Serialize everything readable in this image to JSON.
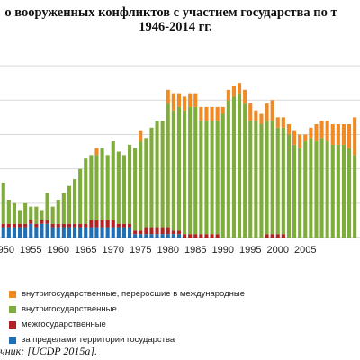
{
  "title_line1": "о вооруженных конфликтов с участием государства по т",
  "title_line2": "1946-2014 гг.",
  "source": "чник: [UCDP 2015a].",
  "colors": {
    "extra": "#1f6fb8",
    "inter": "#b22222",
    "intra": "#7fad3b",
    "intl": "#f08a24"
  },
  "chart_data": {
    "type": "bar",
    "stacked": true,
    "title": "о вооруженных конфликтов с участием государства по т 1946-2014 гг.",
    "x_tick_labels": [
      "1950",
      "1955",
      "1960",
      "1965",
      "1970",
      "1975",
      "1980",
      "1985",
      "1990",
      "1995",
      "2000",
      "2005"
    ],
    "ylim": [
      0,
      55
    ],
    "grid": "horizontal",
    "legend_position": "bottom",
    "categories": [
      1946,
      1947,
      1948,
      1949,
      1950,
      1951,
      1952,
      1953,
      1954,
      1955,
      1956,
      1957,
      1958,
      1959,
      1960,
      1961,
      1962,
      1963,
      1964,
      1965,
      1966,
      1967,
      1968,
      1969,
      1970,
      1971,
      1972,
      1973,
      1974,
      1975,
      1976,
      1977,
      1978,
      1979,
      1980,
      1981,
      1982,
      1983,
      1984,
      1985,
      1986,
      1987,
      1988,
      1989,
      1990,
      1991,
      1992,
      1993,
      1994,
      1995,
      1996,
      1997,
      1998,
      1999,
      2000,
      2001,
      2002,
      2003,
      2004,
      2005,
      2006,
      2007,
      2008,
      2009,
      2010,
      2011,
      2012,
      2013,
      2014
    ],
    "series": [
      {
        "name": "за пределами территории государства",
        "values": [
          3,
          3,
          3,
          3,
          3,
          3,
          3,
          3,
          3,
          4,
          3,
          4,
          4,
          3,
          3,
          3,
          3,
          3,
          3,
          3,
          3,
          3,
          3,
          3,
          3,
          3,
          3,
          3,
          1,
          1,
          1,
          1,
          1,
          1,
          1,
          1,
          1,
          0,
          0,
          0,
          0,
          0,
          0,
          0,
          0,
          0,
          0,
          0,
          0,
          0,
          0,
          0,
          0,
          0,
          0,
          0,
          0,
          0,
          0,
          0,
          0,
          0,
          0,
          0,
          0,
          0,
          0,
          0,
          0
        ]
      },
      {
        "name": "межгосударственные",
        "values": [
          1,
          1,
          1,
          1,
          1,
          1,
          1,
          1,
          1,
          1,
          1,
          1,
          1,
          1,
          1,
          1,
          1,
          1,
          1,
          1,
          2,
          2,
          2,
          2,
          2,
          1,
          1,
          1,
          1,
          1,
          2,
          2,
          2,
          2,
          2,
          1,
          1,
          1,
          1,
          1,
          1,
          1,
          1,
          1,
          0,
          0,
          0,
          0,
          0,
          0,
          0,
          0,
          1,
          1,
          1,
          1,
          0,
          0,
          0,
          0,
          0,
          0,
          0,
          0,
          0,
          0,
          0,
          0,
          0
        ]
      },
      {
        "name": "внутригосударственные",
        "values": [
          10,
          12,
          12,
          12,
          12,
          7,
          6,
          4,
          6,
          4,
          5,
          3,
          8,
          5,
          7,
          9,
          11,
          13,
          16,
          19,
          19,
          19,
          21,
          19,
          23,
          21,
          20,
          23,
          24,
          26,
          26,
          29,
          31,
          31,
          36,
          35,
          36,
          36,
          37,
          37,
          33,
          33,
          33,
          33,
          36,
          40,
          41,
          42,
          39,
          34,
          34,
          33,
          33,
          33,
          31,
          31,
          30,
          27,
          26,
          28,
          29,
          28,
          29,
          28,
          27,
          27,
          27,
          26,
          24
        ]
      },
      {
        "name": "внутригосударственные, переросшие в международные",
        "values": [
          0,
          0,
          0,
          0,
          0,
          0,
          0,
          0,
          0,
          0,
          0,
          0,
          0,
          0,
          0,
          0,
          0,
          0,
          0,
          0,
          0,
          2,
          0,
          0,
          0,
          0,
          0,
          0,
          0,
          3,
          0,
          0,
          0,
          0,
          4,
          5,
          4,
          4,
          4,
          4,
          4,
          4,
          4,
          4,
          2,
          3,
          3,
          3,
          4,
          5,
          3,
          3,
          5,
          6,
          3,
          3,
          3,
          4,
          4,
          2,
          3,
          5,
          5,
          6,
          6,
          6,
          6,
          7,
          11
        ]
      }
    ]
  }
}
